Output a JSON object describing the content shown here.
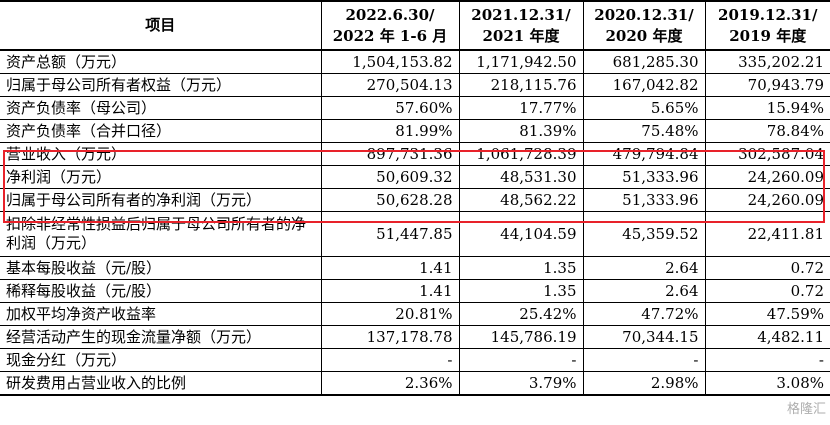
{
  "table": {
    "header": {
      "item": "项目",
      "columns": [
        {
          "line1": "2022.6.30/",
          "line2": "2022 年 1-6 月"
        },
        {
          "line1": "2021.12.31/",
          "line2": "2021 年度"
        },
        {
          "line1": "2020.12.31/",
          "line2": "2020 年度"
        },
        {
          "line1": "2019.12.31/",
          "line2": "2019 年度"
        }
      ]
    },
    "rows": [
      {
        "label": "资产总额（万元）",
        "values": [
          "1,504,153.82",
          "1,171,942.50",
          "681,285.30",
          "335,202.21"
        ]
      },
      {
        "label": "归属于母公司所有者权益（万元）",
        "values": [
          "270,504.13",
          "218,115.76",
          "167,042.82",
          "70,943.79"
        ]
      },
      {
        "label": "资产负债率（母公司）",
        "values": [
          "57.60%",
          "17.77%",
          "5.65%",
          "15.94%"
        ]
      },
      {
        "label": "资产负债率（合并口径）",
        "values": [
          "81.99%",
          "81.39%",
          "75.48%",
          "78.84%"
        ]
      },
      {
        "label": "营业收入（万元）",
        "values": [
          "897,731.36",
          "1,061,728.39",
          "479,794.84",
          "302,587.04"
        ]
      },
      {
        "label": "净利润（万元）",
        "values": [
          "50,609.32",
          "48,531.30",
          "51,333.96",
          "24,260.09"
        ]
      },
      {
        "label": "归属于母公司所有者的净利润（万元）",
        "values": [
          "50,628.28",
          "48,562.22",
          "51,333.96",
          "24,260.09"
        ]
      },
      {
        "label": "扣除非经常性损益后归属于母公司所有者的净利润（万元）",
        "values": [
          "51,447.85",
          "44,104.59",
          "45,359.52",
          "22,411.81"
        ]
      },
      {
        "label": "基本每股收益（元/股）",
        "values": [
          "1.41",
          "1.35",
          "2.64",
          "0.72"
        ]
      },
      {
        "label": "稀释每股收益（元/股）",
        "values": [
          "1.41",
          "1.35",
          "2.64",
          "0.72"
        ]
      },
      {
        "label": "加权平均净资产收益率",
        "values": [
          "20.81%",
          "25.42%",
          "47.72%",
          "47.59%"
        ]
      },
      {
        "label": "经营活动产生的现金流量净额（万元）",
        "values": [
          "137,178.78",
          "145,786.19",
          "70,344.15",
          "4,482.11"
        ]
      },
      {
        "label": "现金分红（万元）",
        "values": [
          "-",
          "-",
          "-",
          "-"
        ]
      },
      {
        "label": "研发费用占营业收入的比例",
        "values": [
          "2.36%",
          "3.79%",
          "2.98%",
          "3.08%"
        ]
      }
    ]
  },
  "highlight_color": "#e8222a",
  "watermark": "格隆汇"
}
